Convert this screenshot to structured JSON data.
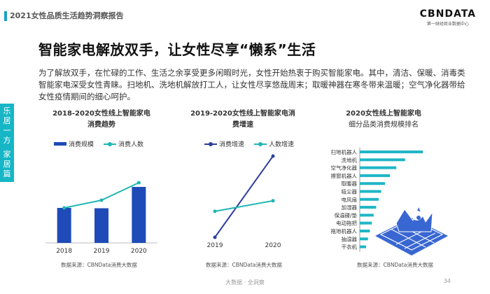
{
  "header": {
    "report_title": "2021女性品质生活趋势洞察报告"
  },
  "logo": {
    "mark": "CBNDATA",
    "sub": "第一财经商业数据中心"
  },
  "headline": "智能家电解放双手，让女性尽享“懒系”生活",
  "paragraph": "为了解放双手，在忙碌的工作、生活之余享受更多闲暇时光，女性开始热衷于购买智能家电。其中，清洁、保暖、消毒类智能家电深受女性青睐。扫地机、洗地机解放打工人，让女性尽享悠哉周末；取暖神器在寒冬带来温暖；空气净化器带给女性疫情期间的细心呵护。",
  "side_tabs": {
    "tab1": [
      "乐",
      "居",
      "一",
      "方"
    ],
    "tab2": [
      "家",
      "居",
      "篇"
    ]
  },
  "colors": {
    "bar": "#1f4bb8",
    "teal": "#1fb6b6",
    "navy": "#2c3e9e",
    "accent": "#17b6c6",
    "hbar": "#1fb6c6"
  },
  "chart_data": [
    {
      "type": "bar",
      "title_line1": "2018-2020女性线上智能家电",
      "title_line2": "消费趋势",
      "categories": [
        "2018",
        "2019",
        "2020"
      ],
      "series": [
        {
          "name": "消费规模",
          "type": "bar",
          "values": [
            1.0,
            0.99,
            1.6
          ]
        },
        {
          "name": "消费人数",
          "type": "line",
          "values": [
            1.0,
            1.22,
            1.72
          ]
        }
      ],
      "ylim": [
        0,
        2.4
      ],
      "legend": "top",
      "source": "数据来源：CBNData消费大数据"
    },
    {
      "type": "line",
      "title_line1": "2019-2020女性线上智能家电消",
      "title_line2": "费增速",
      "categories": [
        "2019",
        "2020"
      ],
      "series": [
        {
          "name": "消费增速",
          "values": [
            0.0,
            1.0
          ]
        },
        {
          "name": "人数增速",
          "values": [
            0.32,
            0.45
          ]
        }
      ],
      "ylim": [
        0,
        1.0
      ],
      "legend": "top",
      "source": "数据来源：CBNData消费大数据"
    },
    {
      "type": "bar",
      "orientation": "horizontal",
      "title_line1": "2020女性线上智能家电",
      "title_line2": "细分品类消费规模排名",
      "categories": [
        "扫地机器人",
        "洗地机",
        "空气净化器",
        "擦窗机器人",
        "取暖器",
        "吸尘器",
        "电风扇",
        "加湿器",
        "保温碟/垫",
        "电动拖把",
        "拖地机器人",
        "抽湿器",
        "干衣机"
      ],
      "values": [
        100,
        72,
        58,
        48,
        40,
        34,
        30,
        26,
        22,
        19,
        16,
        13,
        10
      ],
      "source": "数据来源：CBNData消费大数据"
    }
  ],
  "footer": {
    "text": "大数据 · 全洞察",
    "page": "34"
  }
}
